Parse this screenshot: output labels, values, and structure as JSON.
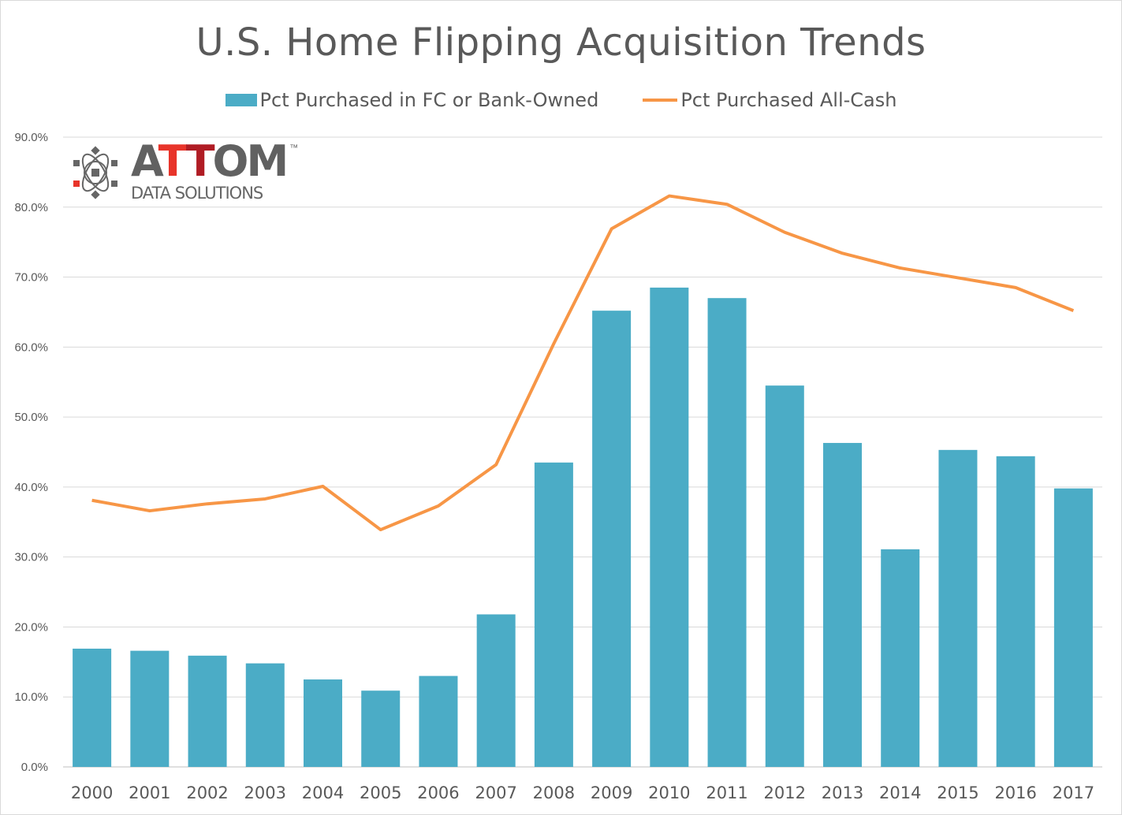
{
  "chart_data": {
    "type": "bar",
    "title": "U.S. Home Flipping Acquisition Trends",
    "xlabel": "",
    "ylabel": "",
    "ylim": [
      0,
      90
    ],
    "yticks": [
      "0.0%",
      "10.0%",
      "20.0%",
      "30.0%",
      "40.0%",
      "50.0%",
      "60.0%",
      "70.0%",
      "80.0%",
      "90.0%"
    ],
    "grid": true,
    "legend_position": "top-center",
    "categories": [
      "2000",
      "2001",
      "2002",
      "2003",
      "2004",
      "2005",
      "2006",
      "2007",
      "2008",
      "2009",
      "2010",
      "2011",
      "2012",
      "2013",
      "2014",
      "2015",
      "2016",
      "2017"
    ],
    "series": [
      {
        "name": "Pct Purchased in FC or Bank-Owned",
        "type": "bar",
        "color": "#4bacc6",
        "values": [
          16.9,
          16.6,
          15.9,
          14.8,
          12.5,
          10.9,
          13.0,
          21.8,
          43.5,
          65.2,
          68.5,
          67.0,
          54.5,
          46.3,
          31.1,
          45.3,
          44.4,
          39.8
        ]
      },
      {
        "name": "Pct Purchased All-Cash",
        "type": "line",
        "color": "#f79646",
        "values": [
          38.1,
          36.6,
          37.6,
          38.3,
          40.1,
          33.9,
          37.3,
          43.2,
          60.5,
          76.9,
          81.6,
          80.4,
          76.4,
          73.4,
          71.3,
          69.9,
          68.5,
          65.2
        ]
      }
    ]
  },
  "logo": {
    "letters": [
      "A",
      "T",
      "T",
      "O",
      "M"
    ],
    "tm": "™",
    "tagline": "DATA SOLUTIONS"
  }
}
